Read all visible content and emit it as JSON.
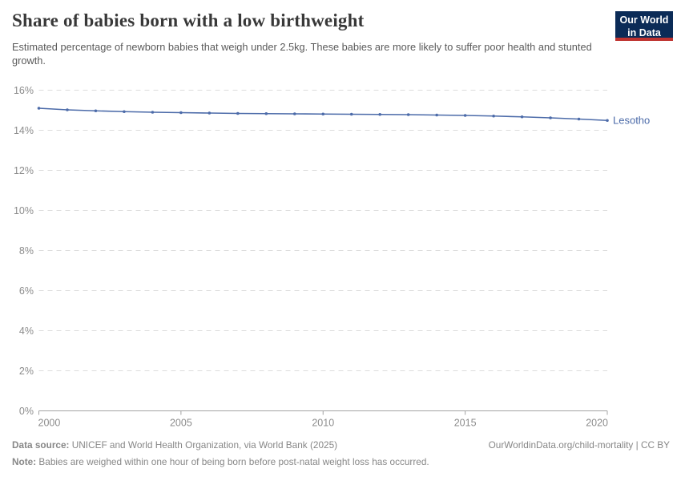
{
  "header": {
    "title": "Share of babies born with a low birthweight",
    "subtitle": "Estimated percentage of newborn babies that weigh under 2.5kg. These babies are more likely to suffer poor health and stunted growth.",
    "logo": {
      "line1": "Our World",
      "line2": "in Data",
      "bg_color": "#0b2b57",
      "accent_color": "#bf3330"
    }
  },
  "chart_data": {
    "type": "line",
    "title": "Share of babies born with a low birthweight",
    "xlabel": "",
    "ylabel": "",
    "x": [
      2000,
      2001,
      2002,
      2003,
      2004,
      2005,
      2006,
      2007,
      2008,
      2009,
      2010,
      2011,
      2012,
      2013,
      2014,
      2015,
      2016,
      2017,
      2018,
      2019,
      2020
    ],
    "series": [
      {
        "name": "Lesotho",
        "color": "#4c6ba9",
        "values": [
          15.1,
          15.02,
          14.97,
          14.93,
          14.9,
          14.88,
          14.86,
          14.84,
          14.83,
          14.82,
          14.81,
          14.8,
          14.79,
          14.78,
          14.76,
          14.74,
          14.71,
          14.67,
          14.62,
          14.56,
          14.49
        ]
      }
    ],
    "xlim": [
      2000,
      2020
    ],
    "ylim": [
      0,
      16
    ],
    "x_ticks": [
      2000,
      2005,
      2010,
      2015,
      2020
    ],
    "y_ticks": [
      0,
      2,
      4,
      6,
      8,
      10,
      12,
      14,
      16
    ],
    "y_tick_suffix": "%",
    "grid": "horizontal-dashed",
    "legend": "end-of-line-label",
    "colors": {
      "gridline": "#dcdcdc",
      "axis": "#a3a3a3",
      "tick_text": "#8c8c8c"
    }
  },
  "footer": {
    "datasource_label": "Data source:",
    "datasource_text": " UNICEF and World Health Organization, via World Bank (2025)",
    "note_label": "Note:",
    "note_text": " Babies are weighed within one hour of being born before post-natal weight loss has occurred.",
    "attribution": "OurWorldinData.org/child-mortality | CC BY"
  }
}
